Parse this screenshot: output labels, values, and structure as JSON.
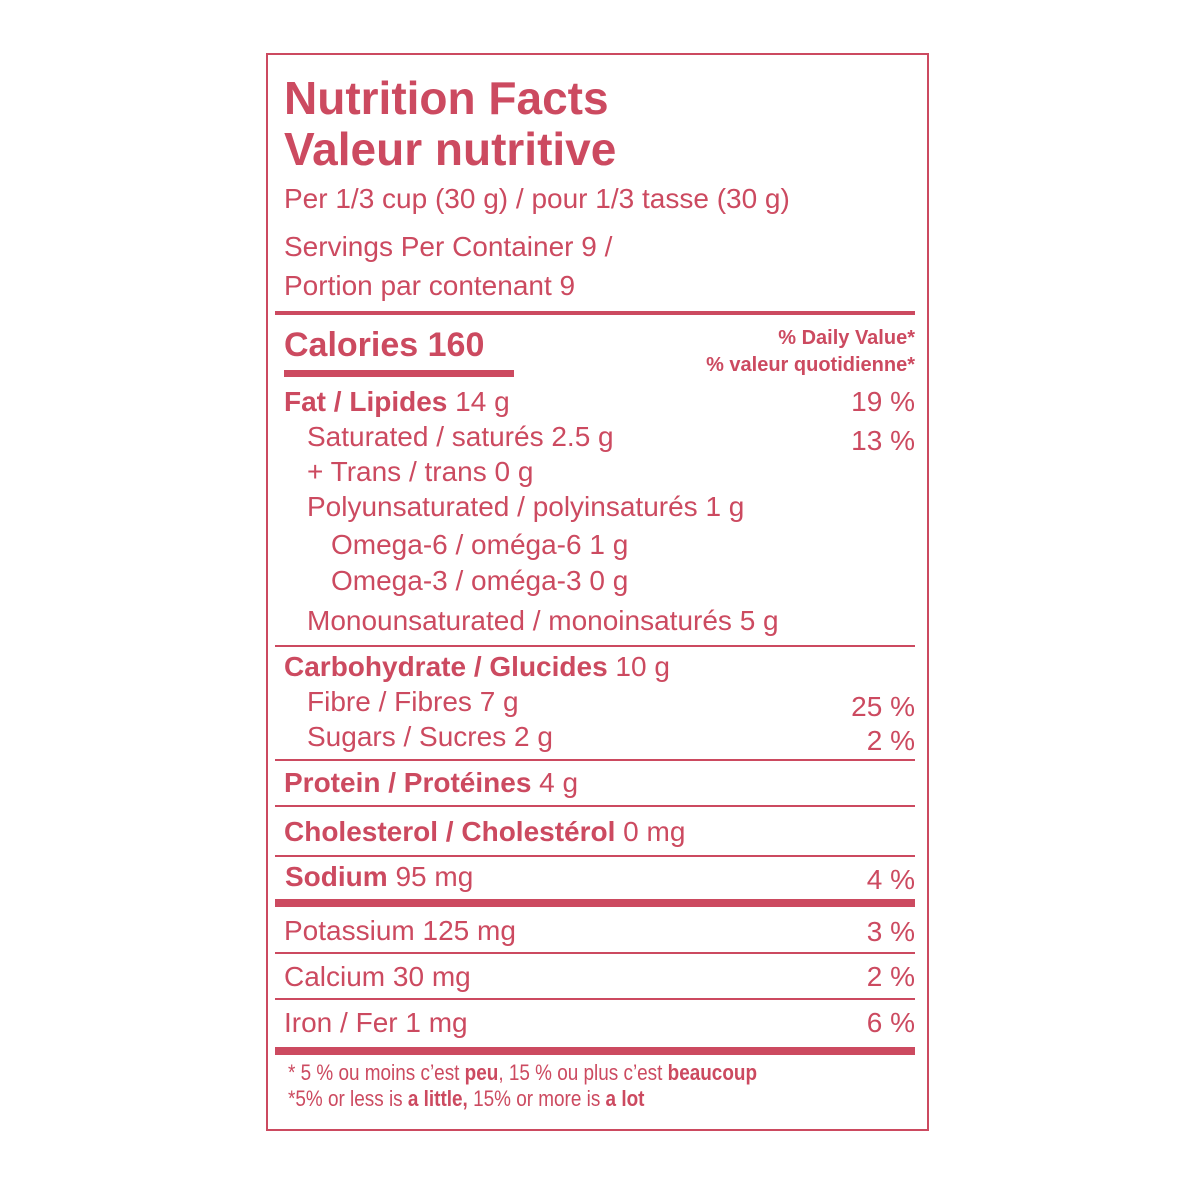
{
  "colors": {
    "label": "#cc4a60"
  },
  "title_en": "Nutrition Facts",
  "title_fr": "Valeur nutritive",
  "serving": "Per 1/3 cup (30 g) / pour 1/3 tasse (30 g)",
  "servings_line1": "Servings Per Container 9 /",
  "servings_line2": "Portion par contenant 9",
  "calories_label": "Calories 160",
  "dv_en": "% Daily Value*",
  "dv_fr": "% valeur quotidienne*",
  "rows": [
    {
      "name": "Fat / Lipides",
      "amount": " 14 g",
      "dv": "19 %"
    },
    {
      "name": "Saturated / saturés 2.5 g",
      "dv": "13 %"
    },
    {
      "name": "+ Trans / trans 0 g"
    },
    {
      "name": "Polyunsaturated / polyinsaturés 1 g"
    },
    {
      "name": "Omega-6 / oméga-6 1 g"
    },
    {
      "name": "Omega-3 / oméga-3 0 g"
    },
    {
      "name": "Monounsaturated / monoinsaturés 5 g"
    },
    {
      "name": "Carbohydrate / Glucides",
      "amount": " 10 g"
    },
    {
      "name": "Fibre / Fibres 7 g",
      "dv": "25 %"
    },
    {
      "name": "Sugars / Sucres 2 g",
      "dv": "2 %"
    },
    {
      "name": "Protein / Protéines",
      "amount": " 4 g"
    },
    {
      "name": "Cholesterol / Cholestérol",
      "amount": " 0 mg"
    },
    {
      "name": "Sodium",
      "amount": " 95 mg",
      "dv": "4 %"
    },
    {
      "name": "Potassium 125 mg",
      "dv": "3 %"
    },
    {
      "name": "Calcium 30 mg",
      "dv": "2 %"
    },
    {
      "name": "Iron / Fer 1 mg",
      "dv": "6 %"
    }
  ],
  "footnote_fr": {
    "a": "* 5 % ou moins c’est ",
    "b": "peu",
    "c": ", 15 % ou plus c’est ",
    "d": "beaucoup"
  },
  "footnote_en": {
    "a": "*5% or less is ",
    "b": "a little,",
    "c": " 15% or more is ",
    "d": "a lot"
  }
}
